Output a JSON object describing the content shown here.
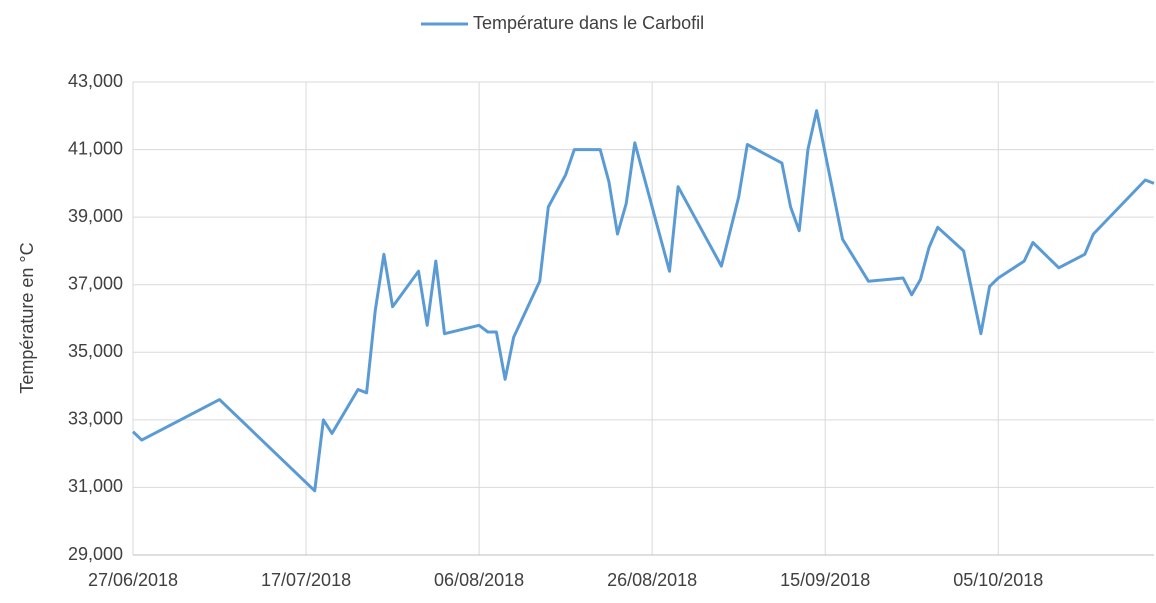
{
  "chart_data": {
    "type": "line",
    "y_label": "Température en °C",
    "legend": "top",
    "grid": true,
    "x": [
      "27/06/2018",
      "28/06/2018",
      "07/07/2018",
      "18/07/2018",
      "19/07/2018",
      "20/07/2018",
      "23/07/2018",
      "24/07/2018",
      "25/07/2018",
      "26/07/2018",
      "27/07/2018",
      "30/07/2018",
      "31/07/2018",
      "01/08/2018",
      "02/08/2018",
      "06/08/2018",
      "07/08/2018",
      "08/08/2018",
      "09/08/2018",
      "10/08/2018",
      "13/08/2018",
      "14/08/2018",
      "16/08/2018",
      "17/08/2018",
      "20/08/2018",
      "21/08/2018",
      "22/08/2018",
      "23/08/2018",
      "24/08/2018",
      "28/08/2018",
      "29/08/2018",
      "03/09/2018",
      "05/09/2018",
      "06/09/2018",
      "10/09/2018",
      "11/09/2018",
      "12/09/2018",
      "13/09/2018",
      "14/09/2018",
      "17/09/2018",
      "20/09/2018",
      "24/09/2018",
      "25/09/2018",
      "26/09/2018",
      "27/09/2018",
      "28/09/2018",
      "01/10/2018",
      "03/10/2018",
      "04/10/2018",
      "05/10/2018",
      "08/10/2018",
      "09/10/2018",
      "12/10/2018",
      "15/10/2018",
      "16/10/2018",
      "22/10/2018",
      "23/10/2018"
    ],
    "series": [
      {
        "name": "Température dans le Carbofil",
        "color": "#5b9bd5",
        "values": [
          32.65,
          32.4,
          33.6,
          30.9,
          33.0,
          32.6,
          33.9,
          33.8,
          36.25,
          37.9,
          36.35,
          37.4,
          35.8,
          37.7,
          35.55,
          35.8,
          35.6,
          35.6,
          34.2,
          35.45,
          37.1,
          39.3,
          40.25,
          41.0,
          41.0,
          40.05,
          38.5,
          39.4,
          41.2,
          37.4,
          39.9,
          37.55,
          39.6,
          41.15,
          40.6,
          39.3,
          38.6,
          41.0,
          42.15,
          38.35,
          37.1,
          37.2,
          36.7,
          37.15,
          38.1,
          38.7,
          38.0,
          35.55,
          36.95,
          37.2,
          37.7,
          38.25,
          37.5,
          37.9,
          38.5,
          40.1,
          40.0
        ]
      }
    ],
    "xlim": [
      "27/06/2018",
      "23/10/2018"
    ],
    "xticks": [
      "27/06/2018",
      "17/07/2018",
      "06/08/2018",
      "26/08/2018",
      "15/09/2018",
      "05/10/2018"
    ],
    "ylim": [
      29,
      43
    ],
    "yticks": [
      {
        "value": 29,
        "label": "29,000"
      },
      {
        "value": 31,
        "label": "31,000"
      },
      {
        "value": 33,
        "label": "33,000"
      },
      {
        "value": 35,
        "label": "35,000"
      },
      {
        "value": 37,
        "label": "37,000"
      },
      {
        "value": 39,
        "label": "39,000"
      },
      {
        "value": 41,
        "label": "41,000"
      },
      {
        "value": 43,
        "label": "43,000"
      }
    ]
  }
}
